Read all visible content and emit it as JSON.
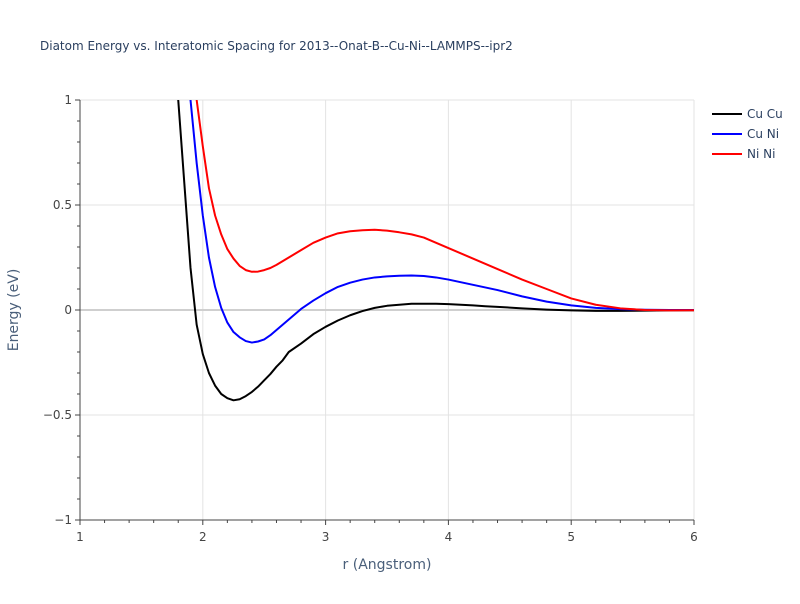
{
  "chart_data": {
    "type": "line",
    "title": "Diatom Energy vs. Interatomic Spacing for 2013--Onat-B--Cu-Ni--LAMMPS--ipr2",
    "xlabel": "r (Angstrom)",
    "ylabel": "Energy (eV)",
    "xlim": [
      1,
      6
    ],
    "ylim": [
      -1,
      1
    ],
    "grid": true,
    "legend_position": "right",
    "x_ticks": [
      1,
      2,
      3,
      4,
      5,
      6
    ],
    "y_ticks": [
      -1,
      -0.5,
      0,
      0.5,
      1
    ],
    "x_tick_labels": [
      "1",
      "2",
      "3",
      "4",
      "5",
      "6"
    ],
    "y_tick_labels": [
      "−1",
      "−0.5",
      "0",
      "0.5",
      "1"
    ],
    "series": [
      {
        "name": "Cu Cu",
        "color": "#000000",
        "x": [
          1.8,
          1.85,
          1.9,
          1.95,
          2.0,
          2.05,
          2.1,
          2.15,
          2.2,
          2.25,
          2.3,
          2.35,
          2.4,
          2.45,
          2.5,
          2.55,
          2.6,
          2.65,
          2.7,
          2.8,
          2.9,
          3.0,
          3.1,
          3.2,
          3.3,
          3.4,
          3.5,
          3.6,
          3.7,
          3.8,
          3.9,
          4.0,
          4.1,
          4.2,
          4.3,
          4.4,
          4.6,
          4.8,
          5.0,
          5.2,
          5.4,
          5.6,
          5.8,
          6.0
        ],
        "y": [
          1.0,
          0.6,
          0.2,
          -0.07,
          -0.21,
          -0.3,
          -0.36,
          -0.4,
          -0.42,
          -0.43,
          -0.425,
          -0.41,
          -0.39,
          -0.365,
          -0.335,
          -0.305,
          -0.27,
          -0.24,
          -0.2,
          -0.16,
          -0.115,
          -0.08,
          -0.05,
          -0.025,
          -0.005,
          0.01,
          0.02,
          0.025,
          0.03,
          0.03,
          0.03,
          0.028,
          0.025,
          0.022,
          0.018,
          0.015,
          0.008,
          0.002,
          -0.002,
          -0.004,
          -0.004,
          -0.003,
          -0.002,
          -0.001
        ]
      },
      {
        "name": "Cu Ni",
        "color": "#0000ff",
        "x": [
          1.9,
          1.95,
          2.0,
          2.05,
          2.1,
          2.15,
          2.2,
          2.25,
          2.3,
          2.35,
          2.4,
          2.45,
          2.5,
          2.55,
          2.6,
          2.7,
          2.8,
          2.9,
          3.0,
          3.1,
          3.2,
          3.3,
          3.4,
          3.5,
          3.6,
          3.7,
          3.8,
          3.9,
          4.0,
          4.2,
          4.4,
          4.6,
          4.8,
          5.0,
          5.2,
          5.4,
          5.6,
          5.8,
          6.0
        ],
        "y": [
          1.0,
          0.7,
          0.45,
          0.25,
          0.11,
          0.01,
          -0.06,
          -0.105,
          -0.13,
          -0.148,
          -0.155,
          -0.15,
          -0.14,
          -0.12,
          -0.095,
          -0.045,
          0.005,
          0.045,
          0.08,
          0.11,
          0.13,
          0.145,
          0.155,
          0.16,
          0.163,
          0.164,
          0.162,
          0.155,
          0.145,
          0.12,
          0.095,
          0.065,
          0.04,
          0.022,
          0.01,
          0.004,
          0.001,
          0.0,
          0.0
        ]
      },
      {
        "name": "Ni Ni",
        "color": "#ff0000",
        "x": [
          1.95,
          2.0,
          2.05,
          2.1,
          2.15,
          2.2,
          2.25,
          2.3,
          2.35,
          2.4,
          2.45,
          2.5,
          2.55,
          2.6,
          2.7,
          2.8,
          2.9,
          3.0,
          3.1,
          3.2,
          3.3,
          3.4,
          3.5,
          3.6,
          3.7,
          3.8,
          3.9,
          4.0,
          4.2,
          4.4,
          4.6,
          4.8,
          5.0,
          5.2,
          5.4,
          5.6,
          5.8,
          6.0
        ],
        "y": [
          1.0,
          0.78,
          0.58,
          0.45,
          0.36,
          0.29,
          0.245,
          0.21,
          0.19,
          0.182,
          0.183,
          0.19,
          0.2,
          0.215,
          0.25,
          0.285,
          0.32,
          0.345,
          0.365,
          0.375,
          0.38,
          0.382,
          0.378,
          0.37,
          0.36,
          0.345,
          0.32,
          0.295,
          0.245,
          0.195,
          0.145,
          0.1,
          0.055,
          0.025,
          0.008,
          0.0,
          -0.002,
          -0.001
        ]
      }
    ]
  }
}
